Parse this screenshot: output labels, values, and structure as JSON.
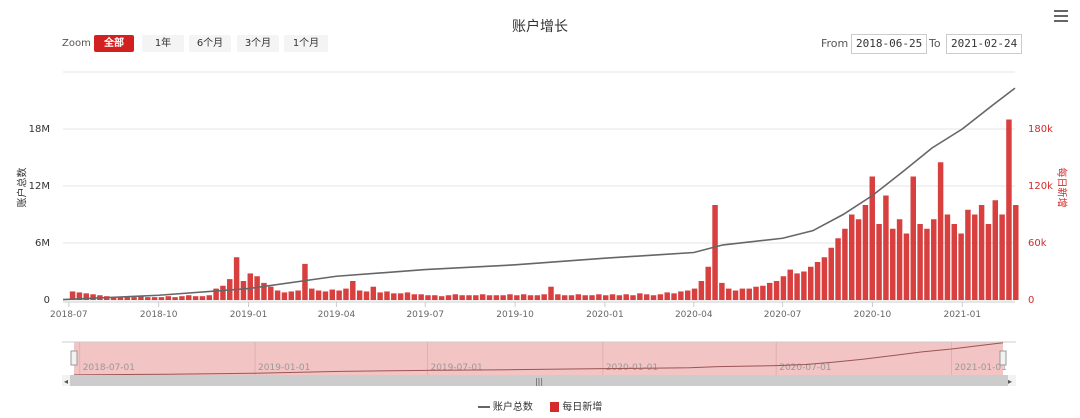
{
  "title": "账户增长",
  "menu_icon": "hamburger-menu-icon",
  "range_selector": {
    "label": "Zoom",
    "buttons": [
      {
        "label": "全部",
        "selected": true
      },
      {
        "label": "1年"
      },
      {
        "label": "6个月"
      },
      {
        "label": "3个月"
      },
      {
        "label": "1个月"
      }
    ],
    "from_label": "From",
    "from_value": "2018-06-25",
    "to_label": "To",
    "to_value": "2021-02-24"
  },
  "colors": {
    "total_line": "#666666",
    "daily_bar": "#d42a2a",
    "accent": "#d21f1f",
    "navigator_mask": "#f2c4c4"
  },
  "legend": [
    {
      "name": "账户总数",
      "symbol": "line"
    },
    {
      "name": "每日新增",
      "symbol": "bar"
    }
  ],
  "navigator_ticks": [
    "2018-07-01",
    "2019-01-01",
    "2019-07-01",
    "2020-01-01",
    "2020-07-01",
    "2021-01-01"
  ],
  "chart_data": {
    "type": "stock-combo",
    "title": "账户增长",
    "xlim": [
      "2018-06-25",
      "2021-02-24"
    ],
    "x_ticks": [
      "2018-07",
      "2018-10",
      "2019-01",
      "2019-04",
      "2019-07",
      "2019-10",
      "2020-01",
      "2020-04",
      "2020-07",
      "2020-10",
      "2021-01"
    ],
    "y_left": {
      "label": "账户总数",
      "ticks": [
        "0",
        "6M",
        "12M",
        "18M"
      ],
      "range": [
        0,
        24000000
      ]
    },
    "y_right": {
      "label": "每日新增",
      "ticks": [
        "0",
        "60k",
        "120k",
        "180k"
      ],
      "range": [
        0,
        240000
      ]
    },
    "grid": true,
    "legend_placement": "bottom",
    "series": [
      {
        "name": "账户总数",
        "type": "line",
        "axis": "left",
        "points": [
          [
            "2018-06-25",
            50000
          ],
          [
            "2018-10-01",
            500000
          ],
          [
            "2019-01-01",
            1200000
          ],
          [
            "2019-04-01",
            2500000
          ],
          [
            "2019-07-01",
            3200000
          ],
          [
            "2019-10-01",
            3700000
          ],
          [
            "2020-01-01",
            4400000
          ],
          [
            "2020-04-01",
            5000000
          ],
          [
            "2020-05-01",
            5800000
          ],
          [
            "2020-07-01",
            6500000
          ],
          [
            "2020-08-01",
            7300000
          ],
          [
            "2020-09-01",
            9000000
          ],
          [
            "2020-10-01",
            11000000
          ],
          [
            "2020-11-01",
            13500000
          ],
          [
            "2020-12-01",
            16000000
          ],
          [
            "2021-01-01",
            18000000
          ],
          [
            "2021-02-01",
            20500000
          ],
          [
            "2021-02-24",
            22300000
          ]
        ]
      },
      {
        "name": "每日新增",
        "type": "column",
        "axis": "right",
        "start": "2018-06-25",
        "interval_days": 7,
        "values": [
          1000,
          9000,
          8000,
          7000,
          6000,
          5000,
          4000,
          3000,
          3000,
          4000,
          3000,
          4000,
          3000,
          3000,
          3000,
          4000,
          3000,
          4000,
          5000,
          4000,
          4000,
          5000,
          12000,
          15000,
          22000,
          45000,
          20000,
          28000,
          25000,
          18000,
          14000,
          10000,
          8000,
          9000,
          10000,
          38000,
          12000,
          10000,
          9000,
          11000,
          10000,
          12000,
          20000,
          10000,
          9000,
          14000,
          8000,
          9000,
          7000,
          7000,
          8000,
          6000,
          6000,
          5000,
          5000,
          4000,
          5000,
          6000,
          5000,
          5000,
          5000,
          6000,
          5000,
          5000,
          5000,
          6000,
          5000,
          6000,
          5000,
          5000,
          6000,
          14000,
          6000,
          5000,
          5000,
          6000,
          5000,
          5000,
          6000,
          5000,
          6000,
          5000,
          6000,
          5000,
          7000,
          6000,
          5000,
          6000,
          8000,
          7000,
          9000,
          10000,
          12000,
          20000,
          35000,
          100000,
          18000,
          12000,
          10000,
          12000,
          12000,
          14000,
          15000,
          18000,
          20000,
          25000,
          32000,
          28000,
          30000,
          35000,
          40000,
          45000,
          55000,
          65000,
          75000,
          90000,
          85000,
          100000,
          130000,
          80000,
          110000,
          75000,
          85000,
          70000,
          130000,
          80000,
          75000,
          85000,
          145000,
          90000,
          80000,
          70000,
          95000,
          90000,
          100000,
          80000,
          105000,
          90000,
          190000,
          100000
        ]
      }
    ]
  }
}
